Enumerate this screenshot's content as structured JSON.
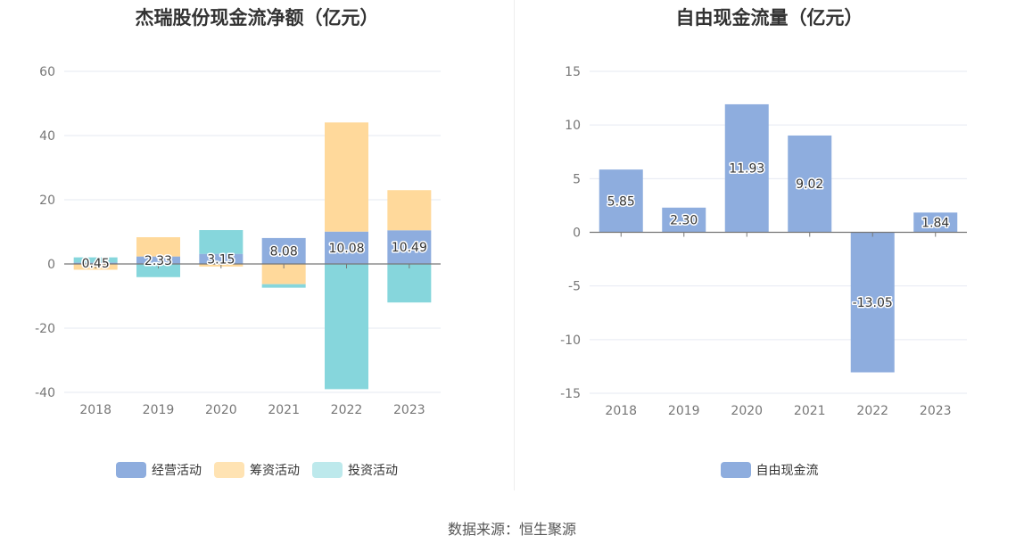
{
  "source": "数据来源：恒生聚源",
  "colors": {
    "operating": "#8eadde",
    "financing": "#ffd99b",
    "investing": "#86d6dc",
    "fcf": "#8eadde"
  },
  "chart_data": [
    {
      "type": "bar",
      "stacked": true,
      "title": "杰瑞股份现金流净额（亿元）",
      "categories": [
        "2018",
        "2019",
        "2020",
        "2021",
        "2022",
        "2023"
      ],
      "ylim": [
        -40,
        60
      ],
      "yticks": [
        60,
        40,
        20,
        0,
        -20,
        -40
      ],
      "series": [
        {
          "name": "经营活动",
          "color": "#8eadde",
          "values": [
            0.45,
            2.33,
            3.15,
            8.08,
            10.08,
            10.49
          ]
        },
        {
          "name": "筹资活动",
          "color": "#ffd99b",
          "values": [
            -1.8,
            6.0,
            -0.8,
            -6.3,
            34.0,
            12.5
          ]
        },
        {
          "name": "投资活动",
          "color": "#86d6dc",
          "values": [
            1.6,
            -4.1,
            7.4,
            -1.1,
            -39.0,
            -12.0
          ]
        }
      ],
      "data_labels": [
        "0.45",
        "2.33",
        "3.15",
        "8.08",
        "10.08",
        "10.49"
      ],
      "legend": [
        "经营活动",
        "筹资活动",
        "投资活动"
      ],
      "legend_position": "bottom"
    },
    {
      "type": "bar",
      "title": "自由现金流量（亿元）",
      "categories": [
        "2018",
        "2019",
        "2020",
        "2021",
        "2022",
        "2023"
      ],
      "ylim": [
        -15,
        15
      ],
      "yticks": [
        15,
        10,
        5,
        0,
        -5,
        -10,
        -15
      ],
      "series": [
        {
          "name": "自由现金流",
          "color": "#8eadde",
          "values": [
            5.85,
            2.3,
            11.93,
            9.02,
            -13.05,
            1.84
          ]
        }
      ],
      "data_labels": [
        "5.85",
        "2.30",
        "11.93",
        "9.02",
        "-13.05",
        "1.84"
      ],
      "legend": [
        "自由现金流"
      ],
      "legend_position": "bottom"
    }
  ]
}
